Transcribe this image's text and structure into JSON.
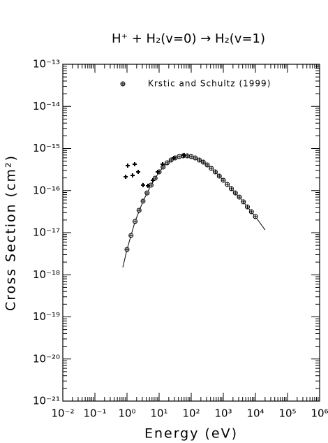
{
  "chart_data": {
    "type": "scatter",
    "title": "H⁺ + H₂(v=0) → H₂(v=1)",
    "x_label": "Energy (eV)",
    "y_label": "Cross Section (cm²)",
    "xscale": "log",
    "yscale": "log",
    "xlim": [
      0.01,
      1000000
    ],
    "ylim": [
      1e-21,
      1e-13
    ],
    "xticks": [
      {
        "value": 0.01,
        "label": "10⁻²"
      },
      {
        "value": 0.1,
        "label": "10⁻¹"
      },
      {
        "value": 1,
        "label": "10⁰"
      },
      {
        "value": 10,
        "label": "10¹"
      },
      {
        "value": 100,
        "label": "10²"
      },
      {
        "value": 1000,
        "label": "10³"
      },
      {
        "value": 10000,
        "label": "10⁴"
      },
      {
        "value": 100000,
        "label": "10⁵"
      },
      {
        "value": 1000000,
        "label": "10⁶"
      }
    ],
    "yticks": [
      {
        "value": 1e-21,
        "label": "10⁻²¹"
      },
      {
        "value": 1e-20,
        "label": "10⁻²⁰"
      },
      {
        "value": 1e-19,
        "label": "10⁻¹⁹"
      },
      {
        "value": 1e-18,
        "label": "10⁻¹⁸"
      },
      {
        "value": 1e-17,
        "label": "10⁻¹⁷"
      },
      {
        "value": 1e-16,
        "label": "10⁻¹⁶"
      },
      {
        "value": 1e-15,
        "label": "10⁻¹⁵"
      },
      {
        "value": 1e-14,
        "label": "10⁻¹⁴"
      },
      {
        "value": 1e-13,
        "label": "10⁻¹³"
      }
    ],
    "legend": "top-left",
    "series": [
      {
        "name": "Krstic and Schultz (1999)",
        "color": "#000000",
        "marker": "circle-plus",
        "x": [
          1,
          1.33,
          1.78,
          2.37,
          3.16,
          4.22,
          5.62,
          7.5,
          10,
          13.3,
          17.8,
          23.7,
          31.6,
          42.2,
          56.2,
          75,
          100,
          133,
          178,
          237,
          316,
          422,
          562,
          750,
          1000,
          1330,
          1780,
          2370,
          3160,
          4220,
          5620,
          7500,
          10000
        ],
        "values": [
          4e-18,
          8.6e-18,
          1.85e-17,
          3.4e-17,
          5.6e-17,
          8.8e-17,
          1.35e-16,
          1.97e-16,
          2.78e-16,
          3.63e-16,
          4.57e-16,
          5.32e-16,
          5.97e-16,
          6.44e-16,
          6.7e-16,
          6.7e-16,
          6.44e-16,
          5.97e-16,
          5.32e-16,
          4.74e-16,
          4.07e-16,
          3.37e-16,
          2.78e-16,
          2.21e-16,
          1.76e-16,
          1.4e-16,
          1.11e-16,
          8.8e-17,
          7e-17,
          5.4e-17,
          4.1e-17,
          3.15e-17,
          2.41e-17
        ]
      },
      {
        "color": "#000000",
        "marker": "plus",
        "x": [
          0.91,
          1.05,
          1.49,
          1.73,
          2.23,
          3.16,
          4.49,
          6.37,
          9.05,
          12.9,
          28.6,
          60
        ],
        "values": [
          2.13e-16,
          3.92e-16,
          2.3e-16,
          4.24e-16,
          2.78e-16,
          1.35e-16,
          1.3e-16,
          1.76e-16,
          2.78e-16,
          4.24e-16,
          5.97e-16,
          7e-16
        ]
      }
    ],
    "fit": {
      "color": "#000000",
      "x": [
        0.74,
        1,
        1.78,
        3.16,
        5.62,
        10,
        17.8,
        31.6,
        56.2,
        100,
        178,
        316,
        562,
        1000,
        1780,
        3160,
        5620,
        10000,
        20000
      ],
      "values": [
        1.5e-18,
        4e-18,
        1.85e-17,
        5.6e-17,
        1.35e-16,
        2.78e-16,
        4.57e-16,
        5.97e-16,
        6.7e-16,
        6.44e-16,
        5.32e-16,
        4.07e-16,
        2.78e-16,
        1.76e-16,
        1.11e-16,
        7e-17,
        4.1e-17,
        2.41e-17,
        1.16e-17
      ]
    }
  }
}
